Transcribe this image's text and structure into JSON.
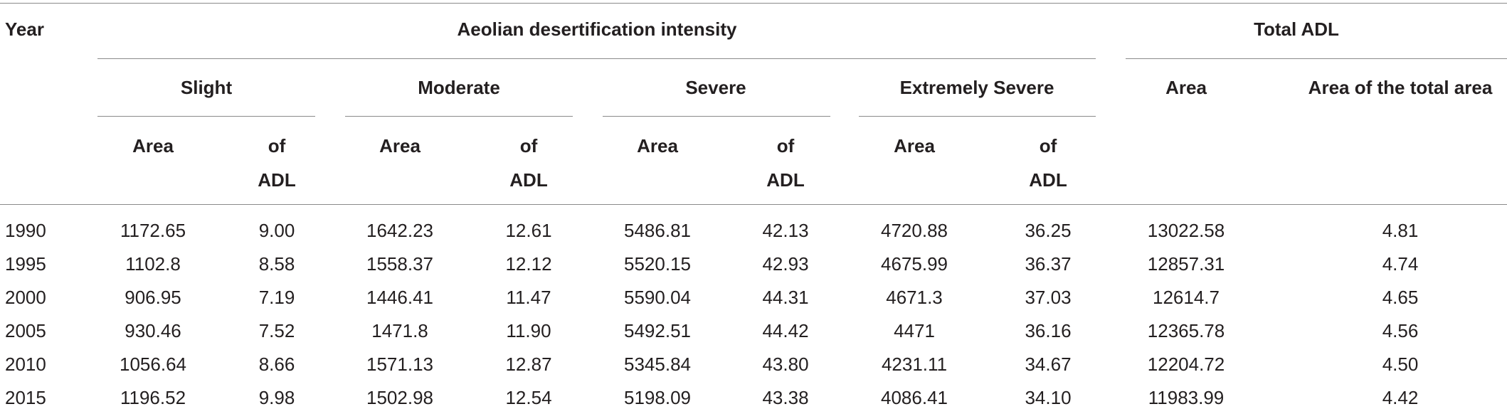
{
  "headers": {
    "year": "Year",
    "intensity": "Aeolian desertification intensity",
    "total": "Total ADL",
    "slight": "Slight",
    "moderate": "Moderate",
    "severe": "Severe",
    "extremely_severe": "Extremely Severe",
    "area": "Area",
    "of_line1": "of",
    "of_line2": "ADL",
    "total_area": "Area",
    "total_share": "Area of the total area"
  },
  "rows": [
    {
      "year": "1990",
      "slight_area": "1172.65",
      "slight_pct": "9.00",
      "moderate_area": "1642.23",
      "moderate_pct": "12.61",
      "severe_area": "5486.81",
      "severe_pct": "42.13",
      "extreme_area": "4720.88",
      "extreme_pct": "36.25",
      "total_area": "13022.58",
      "total_pct": "4.81"
    },
    {
      "year": "1995",
      "slight_area": "1102.8",
      "slight_pct": "8.58",
      "moderate_area": "1558.37",
      "moderate_pct": "12.12",
      "severe_area": "5520.15",
      "severe_pct": "42.93",
      "extreme_area": "4675.99",
      "extreme_pct": "36.37",
      "total_area": "12857.31",
      "total_pct": "4.74"
    },
    {
      "year": "2000",
      "slight_area": "906.95",
      "slight_pct": "7.19",
      "moderate_area": "1446.41",
      "moderate_pct": "11.47",
      "severe_area": "5590.04",
      "severe_pct": "44.31",
      "extreme_area": "4671.3",
      "extreme_pct": "37.03",
      "total_area": "12614.7",
      "total_pct": "4.65"
    },
    {
      "year": "2005",
      "slight_area": "930.46",
      "slight_pct": "7.52",
      "moderate_area": "1471.8",
      "moderate_pct": "11.90",
      "severe_area": "5492.51",
      "severe_pct": "44.42",
      "extreme_area": "4471",
      "extreme_pct": "36.16",
      "total_area": "12365.78",
      "total_pct": "4.56"
    },
    {
      "year": "2010",
      "slight_area": "1056.64",
      "slight_pct": "8.66",
      "moderate_area": "1571.13",
      "moderate_pct": "12.87",
      "severe_area": "5345.84",
      "severe_pct": "43.80",
      "extreme_area": "4231.11",
      "extreme_pct": "34.67",
      "total_area": "12204.72",
      "total_pct": "4.50"
    },
    {
      "year": "2015",
      "slight_area": "1196.52",
      "slight_pct": "9.98",
      "moderate_area": "1502.98",
      "moderate_pct": "12.54",
      "severe_area": "5198.09",
      "severe_pct": "43.38",
      "extreme_area": "4086.41",
      "extreme_pct": "34.10",
      "total_area": "11983.99",
      "total_pct": "4.42"
    }
  ]
}
